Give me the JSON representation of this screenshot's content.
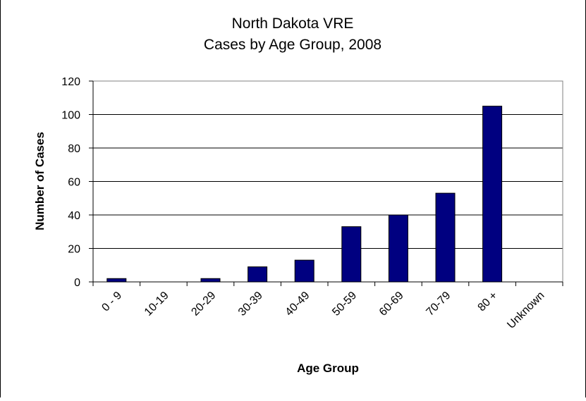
{
  "chart_data": {
    "type": "bar",
    "title": "North Dakota VRE",
    "subtitle": "Cases by Age Group, 2008",
    "xlabel": "Age Group",
    "ylabel": "Number of Cases",
    "categories": [
      "0 - 9",
      "10-19",
      "20-29",
      "30-39",
      "40-49",
      "50-59",
      "60-69",
      "70-79",
      "80 +",
      "Unknown"
    ],
    "values": [
      2,
      0,
      2,
      9,
      13,
      33,
      40,
      53,
      105,
      0
    ],
    "ylim": [
      0,
      120
    ],
    "yticks": [
      "0",
      "20",
      "40",
      "60",
      "80",
      "100",
      "120"
    ],
    "grid": true,
    "legend": "none",
    "bar_color": "#000080"
  }
}
